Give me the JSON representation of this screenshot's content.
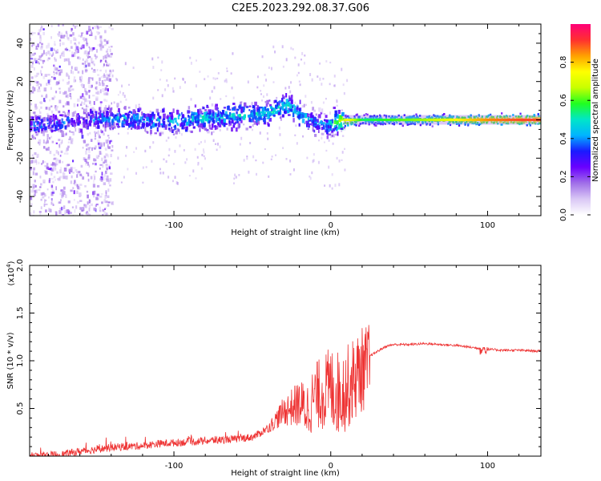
{
  "title": "C2E5.2023.292.08.37.G06",
  "chart_data": [
    {
      "type": "heatmap",
      "xlabel": "Height of straight line (km)",
      "ylabel": "Frequency (Hz)",
      "xlim": [
        -192,
        134
      ],
      "ylim": [
        -50,
        50
      ],
      "xticks": [
        -100,
        0,
        100
      ],
      "yticks": [
        -40,
        -20,
        0,
        20,
        40
      ],
      "colorbar": {
        "label": "Normalized spectral amplitude",
        "range": [
          0.0,
          1.0
        ],
        "ticks": [
          "0.0",
          "0.2",
          "0.4",
          "0.6",
          "0.8"
        ],
        "colors": [
          "#ffffff",
          "#d9c7f5",
          "#a06ee8",
          "#6a00ff",
          "#1a1aff",
          "#00b4ff",
          "#00e6c8",
          "#20ff20",
          "#c8ff00",
          "#ffff00",
          "#ffa000",
          "#ff3030",
          "#ff0078"
        ]
      },
      "ridge": {
        "x": [
          -190,
          -175,
          -160,
          -150,
          -140,
          -120,
          -100,
          -80,
          -60,
          -45,
          -35,
          -28,
          -22,
          -15,
          -8,
          -2,
          5,
          10,
          20,
          40,
          60,
          80,
          100,
          120,
          134
        ],
        "y": [
          -3,
          -2,
          0,
          0,
          1,
          0,
          -1,
          1,
          2,
          3,
          5,
          8,
          4,
          1,
          -2,
          -3,
          0,
          -1,
          0,
          0,
          0,
          0,
          0,
          0,
          0
        ],
        "amplitude": [
          0.35,
          0.35,
          0.3,
          0.35,
          0.4,
          0.4,
          0.42,
          0.45,
          0.45,
          0.45,
          0.5,
          0.5,
          0.45,
          0.4,
          0.38,
          0.4,
          0.6,
          0.75,
          0.55,
          0.6,
          0.65,
          0.75,
          0.85,
          0.9,
          0.9
        ]
      }
    },
    {
      "type": "line",
      "xlabel": "Height of straight line (km)",
      "ylabel": "SNR (10 * v/v)",
      "yscale_label": "(x10",
      "yscale_exp": "4",
      "yscale_close": ")",
      "xlim": [
        -192,
        134
      ],
      "ylim": [
        0,
        2.0
      ],
      "xticks": [
        -100,
        0,
        100
      ],
      "yticks": [
        "0.5",
        "1.0",
        "1.5",
        "2.0"
      ],
      "color": "#ee3333",
      "series": [
        {
          "x": [
            -192,
            -180,
            -170,
            -160,
            -150,
            -140,
            -130,
            -120,
            -110,
            -100,
            -90,
            -80,
            -70,
            -60,
            -50,
            -45,
            -40,
            -35,
            -30,
            -25,
            -20,
            -15,
            -10,
            -5,
            0,
            5,
            10,
            15,
            20,
            25,
            30,
            35,
            40,
            50,
            60,
            70,
            80,
            90,
            95,
            100,
            110,
            120,
            134
          ],
          "y": [
            0.0,
            0.01,
            0.02,
            0.05,
            0.07,
            0.09,
            0.1,
            0.11,
            0.13,
            0.14,
            0.15,
            0.16,
            0.17,
            0.18,
            0.2,
            0.24,
            0.3,
            0.4,
            0.5,
            0.55,
            0.6,
            0.55,
            0.7,
            0.75,
            0.8,
            0.75,
            0.8,
            0.9,
            1.0,
            1.05,
            1.1,
            1.15,
            1.17,
            1.17,
            1.18,
            1.17,
            1.16,
            1.14,
            1.13,
            1.12,
            1.11,
            1.11,
            1.1
          ]
        }
      ]
    }
  ]
}
